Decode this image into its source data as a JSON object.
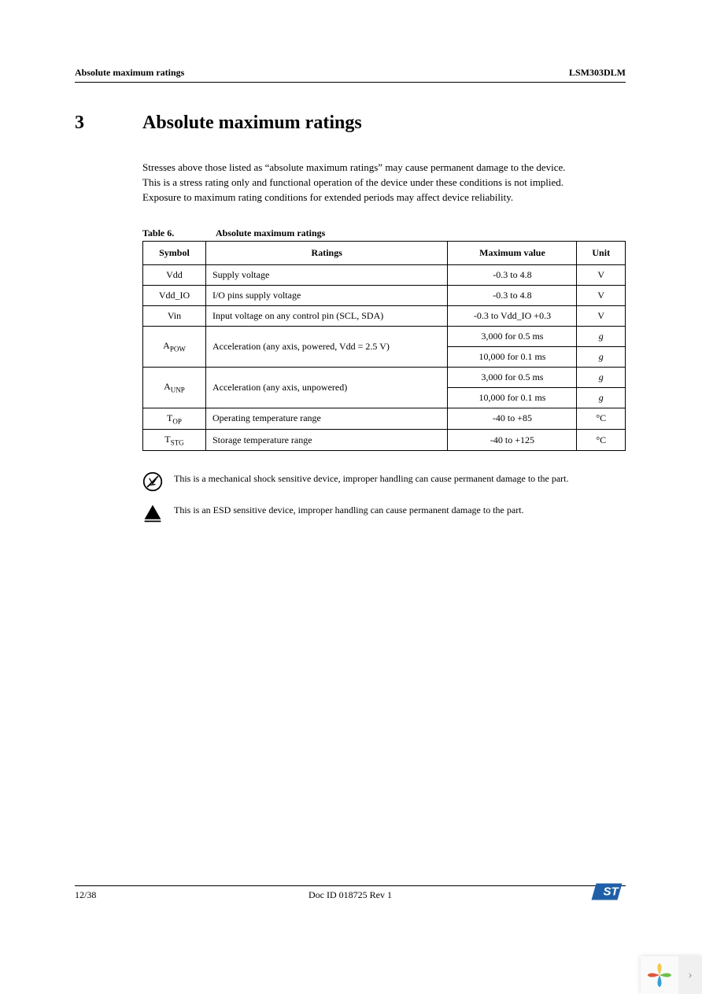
{
  "header": {
    "left": "Absolute maximum ratings",
    "right": "LSM303DLM"
  },
  "section": {
    "number": "3",
    "title": "Absolute maximum ratings"
  },
  "paragraph": "Stresses above those listed as “absolute maximum ratings” may cause permanent damage to the device. This is a stress rating only and functional operation of the device under these conditions is not implied. Exposure to maximum rating conditions for extended periods may affect device reliability.",
  "table": {
    "label": "Table 6.",
    "title": "Absolute maximum ratings",
    "columns": [
      "Symbol",
      "Ratings",
      "Maximum value",
      "Unit"
    ],
    "rows": [
      {
        "symbol": "Vdd",
        "sub": "",
        "rating": "Supply voltage",
        "max": "-0.3 to 4.8",
        "unit": "V",
        "unit_italic": false
      },
      {
        "symbol": "Vdd_IO",
        "sub": "",
        "rating": "I/O pins supply voltage",
        "max": "-0.3 to 4.8",
        "unit": "V",
        "unit_italic": false
      },
      {
        "symbol": "Vin",
        "sub": "",
        "rating": "Input voltage on any control pin (SCL, SDA)",
        "max": "-0.3 to Vdd_IO +0.3",
        "unit": "V",
        "unit_italic": false
      },
      {
        "symbol": "A",
        "sub": "POW",
        "rating": "Acceleration (any axis, powered, Vdd = 2.5 V)",
        "max": "3,000 for 0.5 ms",
        "unit": "g",
        "unit_italic": true,
        "rowspan": 2
      },
      {
        "max": "10,000 for 0.1 ms",
        "unit": "g",
        "unit_italic": true,
        "cont": true
      },
      {
        "symbol": "A",
        "sub": "UNP",
        "rating": "Acceleration (any axis, unpowered)",
        "max": "3,000 for 0.5 ms",
        "unit": "g",
        "unit_italic": true,
        "rowspan": 2
      },
      {
        "max": "10,000 for 0.1 ms",
        "unit": "g",
        "unit_italic": true,
        "cont": true
      },
      {
        "symbol": "T",
        "sub": "OP",
        "rating": "Operating temperature range",
        "max": "-40 to +85",
        "unit": "°C",
        "unit_italic": false
      },
      {
        "symbol": "T",
        "sub": "STG",
        "rating": "Storage temperature range",
        "max": "-40 to +125",
        "unit": "°C",
        "unit_italic": false
      }
    ]
  },
  "notes": [
    {
      "icon": "shock",
      "text": "This is a mechanical shock sensitive device, improper handling can cause permanent damage to the part."
    },
    {
      "icon": "esd",
      "text": "This is an ESD sensitive device, improper handling can cause permanent damage to the part."
    }
  ],
  "footer": {
    "page": "12/38",
    "docid": "Doc ID 018725 Rev 1"
  },
  "colors": {
    "text": "#000000",
    "bg": "#ffffff",
    "st_blue": "#1f5fa8",
    "petal_yellow": "#f2c94c",
    "petal_green": "#6fbf4b",
    "petal_blue": "#39a0d7",
    "petal_red": "#e0563b"
  }
}
